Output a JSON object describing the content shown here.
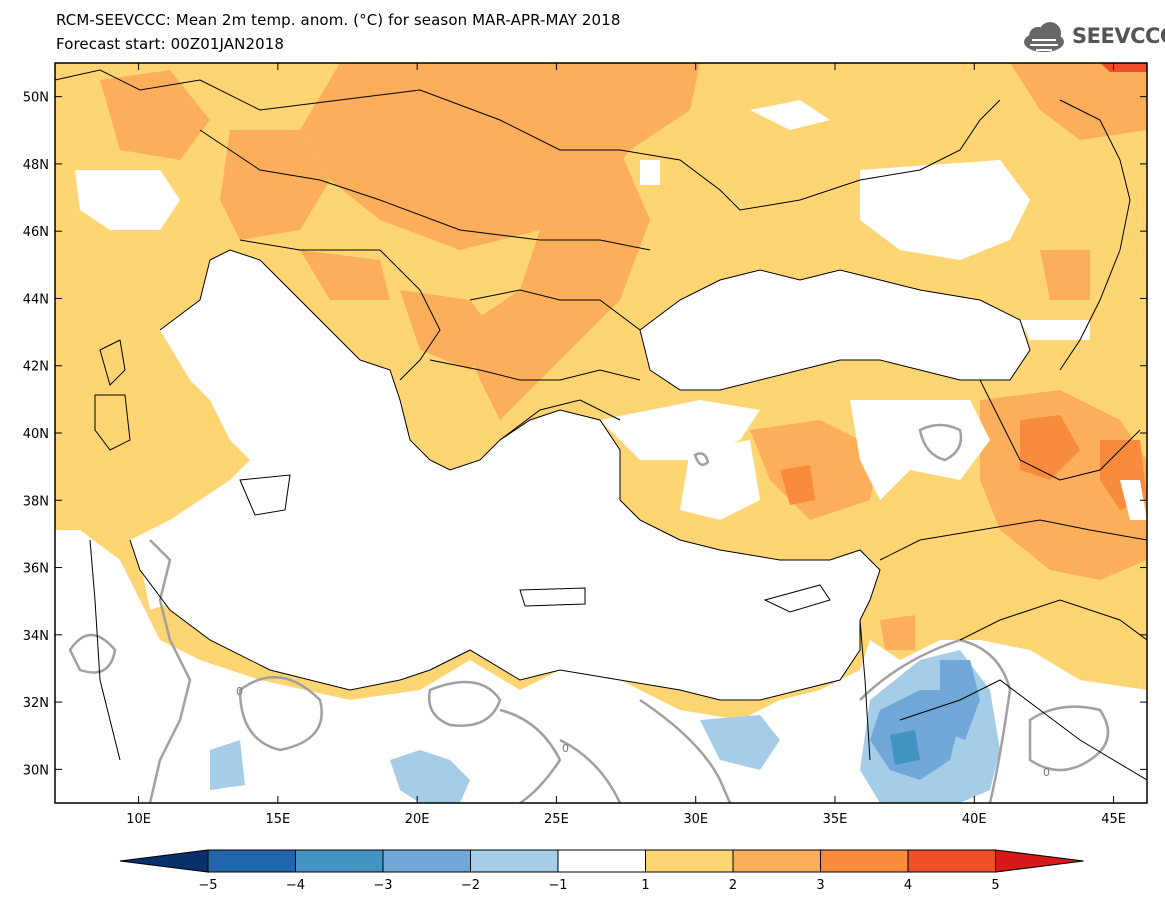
{
  "header": {
    "title_line1": "RCM-SEEVCCC: Mean 2m temp. anom. (°C) for season MAR-APR-MAY 2018",
    "title_line2": "Forecast start: 00Z01JAN2018",
    "logo_text": "SEEVCCC",
    "logo_icon": "cloud-icon"
  },
  "map": {
    "lat_labels": [
      "50N",
      "48N",
      "46N",
      "44N",
      "42N",
      "40N",
      "38N",
      "36N",
      "34N",
      "32N",
      "30N"
    ],
    "lat_values": [
      50,
      48,
      46,
      44,
      42,
      40,
      38,
      36,
      34,
      32,
      30
    ],
    "lon_labels": [
      "10E",
      "15E",
      "20E",
      "25E",
      "30E",
      "35E",
      "40E",
      "45E"
    ],
    "lon_values": [
      10,
      15,
      20,
      25,
      30,
      35,
      40,
      45
    ],
    "lon_range": [
      7,
      46.2
    ],
    "lat_range": [
      29,
      51
    ],
    "contour_label": "0"
  },
  "colorbar": {
    "labels": [
      "−5",
      "−4",
      "−3",
      "−2",
      "−1",
      "1",
      "2",
      "3",
      "4",
      "5"
    ],
    "colors": [
      "#08306b",
      "#2166ac",
      "#4393c3",
      "#6fa8d6",
      "#a6cde8",
      "#ffffff",
      "#fdd673",
      "#fdae5a",
      "#f98b3d",
      "#f04e2b",
      "#d7191c"
    ]
  }
}
